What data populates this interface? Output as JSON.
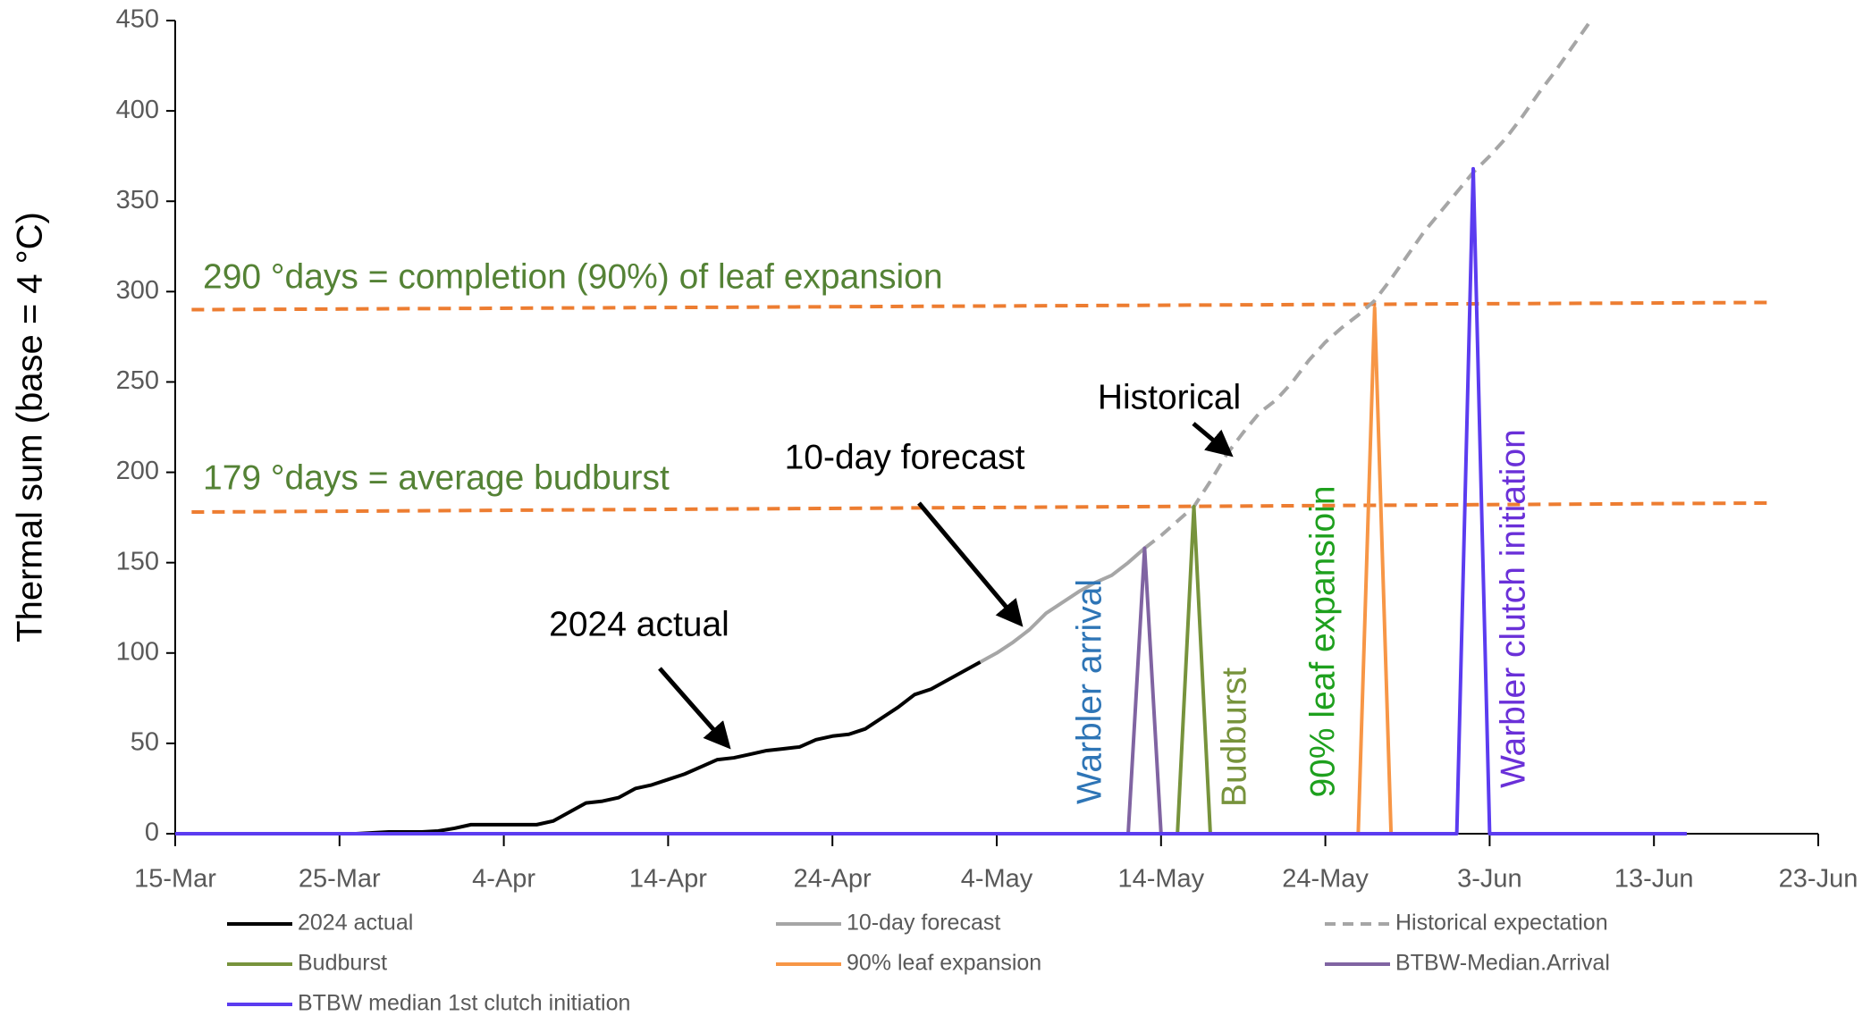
{
  "chart_data": {
    "type": "line",
    "ylabel": "Thermal sum (base = 4 °C)",
    "xlim": [
      0,
      100
    ],
    "xticks": [
      {
        "value": 0,
        "label": "15-Mar"
      },
      {
        "value": 10,
        "label": "25-Mar"
      },
      {
        "value": 20,
        "label": "4-Apr"
      },
      {
        "value": 30,
        "label": "14-Apr"
      },
      {
        "value": 40,
        "label": "24-Apr"
      },
      {
        "value": 50,
        "label": "4-May"
      },
      {
        "value": 60,
        "label": "14-May"
      },
      {
        "value": 70,
        "label": "24-May"
      },
      {
        "value": 80,
        "label": "3-Jun"
      },
      {
        "value": 90,
        "label": "13-Jun"
      },
      {
        "value": 100,
        "label": "23-Jun"
      }
    ],
    "ylim": [
      0,
      450
    ],
    "yticks": [
      0,
      50,
      100,
      150,
      200,
      250,
      300,
      350,
      400,
      450
    ],
    "grid": false,
    "series": [
      {
        "name": "2024 actual",
        "color": "#000000",
        "dash": false,
        "x": [
          10,
          11,
          12,
          13,
          14,
          15,
          16,
          17,
          18,
          19,
          20,
          21,
          22,
          23,
          24,
          25,
          26,
          27,
          28,
          29,
          30,
          31,
          32,
          33,
          34,
          35,
          36,
          37,
          38,
          39,
          40,
          41,
          42,
          43,
          44,
          45,
          46,
          47,
          48,
          49
        ],
        "values": [
          0,
          0,
          0.5,
          1,
          1,
          1,
          1.5,
          3,
          5,
          5,
          5,
          5,
          5,
          7,
          12,
          17,
          18,
          20,
          25,
          27,
          30,
          33,
          37,
          41,
          42,
          44,
          46,
          47,
          48,
          52,
          54,
          55,
          58,
          64,
          70,
          77,
          80,
          85,
          90,
          95
        ]
      },
      {
        "name": "10-day forecast",
        "color": "#a6a6a6",
        "dash": false,
        "x": [
          49,
          50,
          51,
          52,
          53,
          54,
          55,
          56,
          57,
          58,
          59
        ],
        "values": [
          95,
          100,
          106,
          113,
          122,
          128,
          134,
          139,
          143,
          150,
          158
        ]
      },
      {
        "name": "Historical expectation",
        "color": "#a6a6a6",
        "dash": true,
        "x": [
          59,
          60,
          61,
          62,
          63,
          64,
          65,
          66,
          67,
          68,
          69,
          70,
          71,
          72,
          73,
          74,
          75,
          76,
          77,
          78,
          79,
          80,
          81,
          82,
          83,
          84,
          85,
          86,
          87
        ],
        "values": [
          158,
          165,
          173,
          181,
          195,
          210,
          222,
          233,
          240,
          250,
          262,
          272,
          280,
          287,
          295,
          307,
          320,
          333,
          344,
          355,
          366,
          375,
          385,
          397,
          410,
          422,
          435,
          448,
          462
        ]
      },
      {
        "name": "Budburst",
        "color": "#77933c",
        "dash": false,
        "x": [
          61,
          62,
          63
        ],
        "values": [
          0,
          181,
          0
        ]
      },
      {
        "name": "90% leaf expansion",
        "color": "#f79646",
        "dash": false,
        "x": [
          72,
          73,
          74
        ],
        "values": [
          0,
          291,
          0
        ]
      },
      {
        "name": "BTBW-Median.Arrival",
        "color": "#8064a2",
        "dash": false,
        "x": [
          58,
          59,
          60
        ],
        "values": [
          0,
          158,
          0
        ]
      },
      {
        "name": "BTBW median 1st clutch initiation",
        "color": "#5b3cf0",
        "dash": false,
        "x": [
          0,
          78,
          79,
          80,
          92
        ],
        "values": [
          0,
          0,
          368,
          0,
          0
        ]
      }
    ],
    "reference_lines": [
      {
        "color": "#ed7d31",
        "x": [
          1,
          97
        ],
        "values": [
          290,
          294
        ]
      },
      {
        "color": "#ed7d31",
        "x": [
          1,
          97
        ],
        "values": [
          178,
          183
        ]
      }
    ],
    "annotations": [
      {
        "text": "290 °days = completion (90%) of leaf expansion",
        "color": "#548235"
      },
      {
        "text": "179 °days = average budburst",
        "color": "#548235"
      },
      {
        "text": "Historical",
        "color": "#000000"
      },
      {
        "text": "10-day forecast",
        "color": "#000000"
      },
      {
        "text": "2024 actual",
        "color": "#000000"
      },
      {
        "text": "Warbler arrival",
        "color": "#2e75b6"
      },
      {
        "text": "Budburst",
        "color": "#77933c"
      },
      {
        "text": "90% leaf  expansioin",
        "color": "#1ea01e"
      },
      {
        "text": "Warbler clutch initiation",
        "color": "#6a30d8"
      }
    ]
  }
}
